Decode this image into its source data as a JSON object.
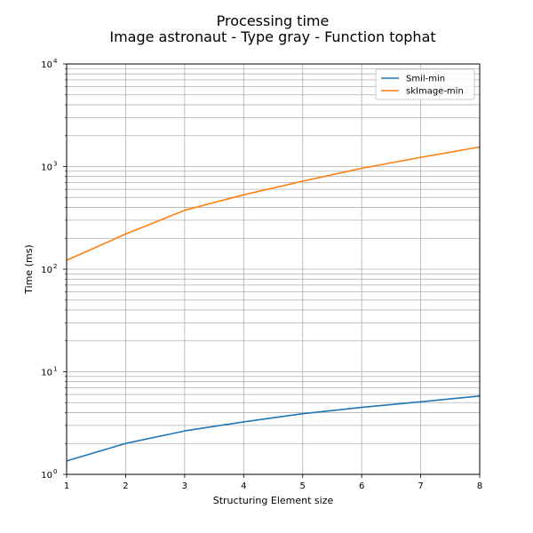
{
  "chart_data": {
    "type": "line",
    "title": "Processing time",
    "subtitle": "Image astronaut - Type gray - Function tophat",
    "xlabel": "Structuring Element size",
    "ylabel": "Time (ms)",
    "yscale": "log",
    "xlim": [
      1,
      8
    ],
    "ylim": [
      1,
      10000
    ],
    "grid": true,
    "legend_position": "top-right",
    "x": [
      1,
      2,
      3,
      4,
      5,
      6,
      7,
      8
    ],
    "x_ticks": [
      "1",
      "2",
      "3",
      "4",
      "5",
      "6",
      "7",
      "8"
    ],
    "y_ticks": [
      {
        "value": 1,
        "mantissa": "10",
        "exp": "0"
      },
      {
        "value": 10,
        "mantissa": "10",
        "exp": "1"
      },
      {
        "value": 100,
        "mantissa": "10",
        "exp": "2"
      },
      {
        "value": 1000,
        "mantissa": "10",
        "exp": "3"
      },
      {
        "value": 10000,
        "mantissa": "10",
        "exp": "4"
      }
    ],
    "series": [
      {
        "name": "Smil-min",
        "color": "#1f77b4",
        "values": [
          1.35,
          2.0,
          2.65,
          3.25,
          3.9,
          4.5,
          5.1,
          5.8
        ]
      },
      {
        "name": "skImage-min",
        "color": "#ff7f0e",
        "values": [
          122,
          220,
          375,
          530,
          720,
          960,
          1230,
          1550
        ]
      }
    ]
  }
}
